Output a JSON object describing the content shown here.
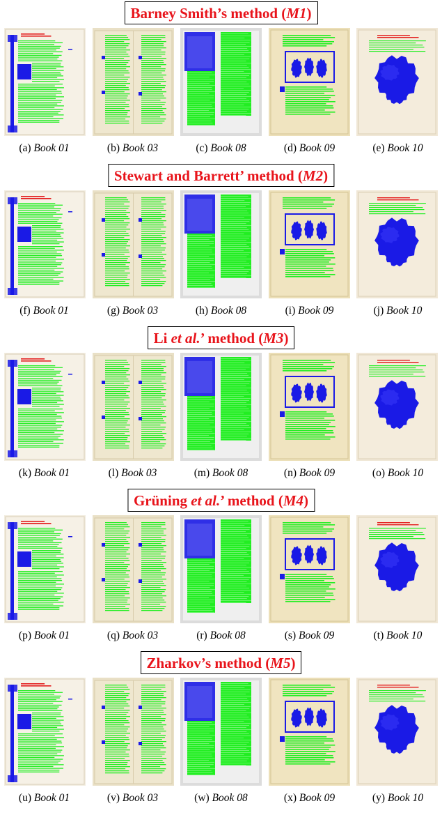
{
  "colors": {
    "title_red": "#e8141b",
    "text_region": "#22ee22",
    "image_region": "#1a1ae6",
    "parchment": "#efe6cc",
    "gray_page": "#dcdcdc"
  },
  "books": [
    "Book 01",
    "Book 03",
    "Book 08",
    "Book 09",
    "Book 10"
  ],
  "sections": [
    {
      "title_pre": "Barney Smith’s method (",
      "title_it": "",
      "title_post": "",
      "abbr": "M1",
      "title_close": ")",
      "letters": [
        "(a)",
        "(b)",
        "(c)",
        "(d)",
        "(e)"
      ]
    },
    {
      "title_pre": "Stewart and Barrett’ method (",
      "title_it": "",
      "title_post": "",
      "abbr": "M2",
      "title_close": ")",
      "letters": [
        "(f)",
        "(g)",
        "(h)",
        "(i)",
        "(j)"
      ]
    },
    {
      "title_pre": "Li ",
      "title_it": "et al.",
      "title_post": "’ method (",
      "abbr": "M3",
      "title_close": ")",
      "letters": [
        "(k)",
        "(l)",
        "(m)",
        "(n)",
        "(o)"
      ]
    },
    {
      "title_pre": "Grüning ",
      "title_it": "et al.",
      "title_post": "’ method (",
      "abbr": "M4",
      "title_close": ")",
      "letters": [
        "(p)",
        "(q)",
        "(r)",
        "(s)",
        "(t)"
      ]
    },
    {
      "title_pre": "Zharkov’s method (",
      "title_it": "",
      "title_post": "",
      "abbr": "M5",
      "title_close": ")",
      "letters": [
        "(u)",
        "(v)",
        "(w)",
        "(x)",
        "(y)"
      ]
    }
  ]
}
